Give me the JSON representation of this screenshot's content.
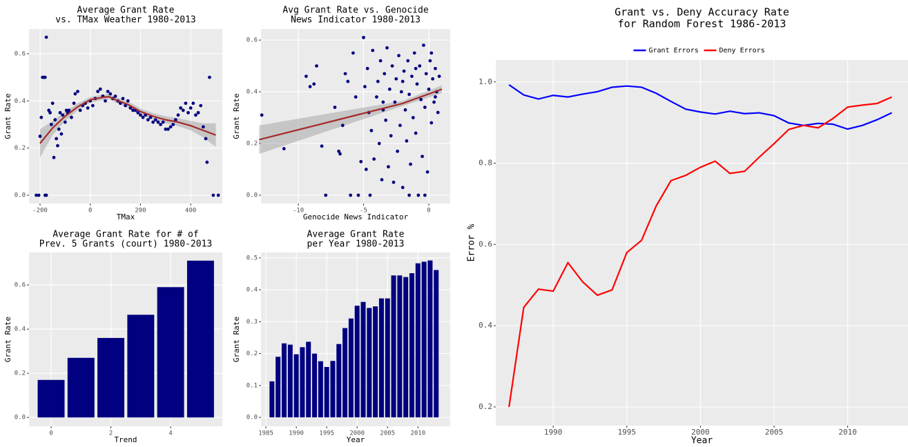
{
  "chart_data": [
    {
      "type": "scatter",
      "title": [
        "Average Grant Rate",
        "vs. TMax Weather 1980-2013"
      ],
      "xlabel": "TMax",
      "ylabel": "Grant Rate",
      "color": "#000080",
      "x": [
        -215,
        -205,
        -180,
        -175,
        -200,
        -195,
        -190,
        -185,
        -180,
        -175,
        -165,
        -160,
        -150,
        -155,
        -145,
        -140,
        -135,
        -130,
        -125,
        -120,
        -115,
        -110,
        -100,
        -95,
        -90,
        -85,
        -75,
        -65,
        -60,
        -50,
        -40,
        -30,
        -20,
        -10,
        0,
        10,
        20,
        30,
        40,
        50,
        60,
        70,
        80,
        90,
        100,
        110,
        120,
        130,
        140,
        150,
        160,
        170,
        180,
        190,
        200,
        210,
        220,
        230,
        240,
        250,
        260,
        270,
        280,
        290,
        300,
        310,
        320,
        330,
        340,
        350,
        360,
        370,
        380,
        390,
        400,
        410,
        420,
        430,
        440,
        450,
        460,
        465,
        475,
        490,
        510
      ],
      "values": [
        0.0,
        0.0,
        0.0,
        0.0,
        0.25,
        0.33,
        0.5,
        0.5,
        0.5,
        0.67,
        0.36,
        0.35,
        0.39,
        0.3,
        0.16,
        0.32,
        0.24,
        0.21,
        0.28,
        0.35,
        0.26,
        0.34,
        0.31,
        0.36,
        0.35,
        0.36,
        0.33,
        0.39,
        0.43,
        0.44,
        0.36,
        0.38,
        0.39,
        0.37,
        0.4,
        0.38,
        0.41,
        0.44,
        0.45,
        0.42,
        0.4,
        0.44,
        0.43,
        0.41,
        0.42,
        0.4,
        0.39,
        0.41,
        0.38,
        0.4,
        0.37,
        0.36,
        0.36,
        0.35,
        0.34,
        0.33,
        0.34,
        0.32,
        0.33,
        0.31,
        0.32,
        0.31,
        0.3,
        0.31,
        0.28,
        0.28,
        0.29,
        0.3,
        0.32,
        0.34,
        0.37,
        0.36,
        0.39,
        0.35,
        0.37,
        0.39,
        0.34,
        0.35,
        0.38,
        0.29,
        0.24,
        0.14,
        0.5,
        0.0,
        0.0
      ],
      "smooth": {
        "color": "#a52a2a",
        "x": [
          -200,
          -150,
          -100,
          -50,
          0,
          50,
          75,
          100,
          150,
          200,
          250,
          300,
          350,
          400,
          450,
          500
        ],
        "values": [
          0.22,
          0.285,
          0.335,
          0.375,
          0.405,
          0.415,
          0.418,
          0.405,
          0.385,
          0.355,
          0.335,
          0.32,
          0.31,
          0.295,
          0.275,
          0.255
        ],
        "lower": [
          0.16,
          0.255,
          0.315,
          0.36,
          0.393,
          0.403,
          0.406,
          0.393,
          0.372,
          0.342,
          0.322,
          0.305,
          0.293,
          0.275,
          0.245,
          0.205
        ],
        "upper": [
          0.28,
          0.315,
          0.355,
          0.39,
          0.417,
          0.427,
          0.43,
          0.417,
          0.398,
          0.368,
          0.348,
          0.335,
          0.327,
          0.315,
          0.305,
          0.305
        ]
      },
      "xlim": [
        -244,
        526
      ],
      "ylim": [
        -0.035,
        0.705
      ],
      "xticks": [
        -200,
        0,
        200,
        400
      ],
      "yticks": [
        {
          "value": 0,
          "label": "0.0"
        },
        0.2,
        0.4,
        0.6
      ],
      "grid": true
    },
    {
      "type": "scatter",
      "title": [
        "Avg Grant Rate vs. Genocide",
        "News Indicator 1980-2013"
      ],
      "xlabel": "Genocide News Indicator",
      "ylabel": "Grant Rate",
      "color": "#000080",
      "x": [
        -12.8,
        -11.1,
        -9.4,
        -9.1,
        -8.8,
        -8.6,
        -8.2,
        -7.9,
        -7.2,
        -6.9,
        -6.8,
        -6.6,
        -6.4,
        -6.2,
        -6.0,
        -5.8,
        -5.6,
        -5.4,
        -5.2,
        -5.0,
        -4.9,
        -4.8,
        -4.7,
        -4.6,
        -4.5,
        -4.4,
        -4.3,
        -4.2,
        -4.0,
        -3.9,
        -3.8,
        -3.7,
        -3.6,
        -3.5,
        -3.4,
        -3.3,
        -3.2,
        -3.1,
        -3.0,
        -2.9,
        -2.8,
        -2.7,
        -2.6,
        -2.5,
        -2.4,
        -2.3,
        -2.2,
        -2.1,
        -2.0,
        -1.9,
        -1.8,
        -1.7,
        -1.6,
        -1.5,
        -1.4,
        -1.3,
        -1.2,
        -1.1,
        -1.0,
        -0.9,
        -0.8,
        -0.7,
        -0.6,
        -0.5,
        -0.4,
        -0.3,
        -0.2,
        -0.1,
        0.0,
        0.1,
        0.2,
        0.3,
        0.4,
        0.5,
        0.6,
        0.7,
        0.8,
        -0.3,
        -1.5,
        -3.5,
        -2.0,
        -1.0,
        0.2,
        0.5
      ],
      "values": [
        0.31,
        0.18,
        0.46,
        0.42,
        0.43,
        0.5,
        0.19,
        0.0,
        0.34,
        0.17,
        0.16,
        0.27,
        0.47,
        0.44,
        0.0,
        0.55,
        0.38,
        0.0,
        0.13,
        0.61,
        0.42,
        0.1,
        0.49,
        0.32,
        0.0,
        0.25,
        0.56,
        0.14,
        0.38,
        0.44,
        0.2,
        0.52,
        0.06,
        0.33,
        0.47,
        0.29,
        0.57,
        0.11,
        0.41,
        0.23,
        0.5,
        0.05,
        0.36,
        0.45,
        0.17,
        0.54,
        0.27,
        0.4,
        0.03,
        0.48,
        0.33,
        0.21,
        0.52,
        0.39,
        0.12,
        0.46,
        0.3,
        0.55,
        0.24,
        0.43,
        0.0,
        0.5,
        0.37,
        0.15,
        0.58,
        0.34,
        0.47,
        0.09,
        0.41,
        0.52,
        0.28,
        0.45,
        0.36,
        0.49,
        0.4,
        0.32,
        0.46,
        0.0,
        0.0,
        0.36,
        0.44,
        0.49,
        0.55,
        0.38
      ],
      "smooth": {
        "color": "#a52a2a",
        "x": [
          -13,
          -2,
          1
        ],
        "values": [
          0.215,
          0.355,
          0.41
        ],
        "lower": [
          0.16,
          0.345,
          0.395
        ],
        "upper": [
          0.27,
          0.365,
          0.425
        ]
      },
      "xlim": [
        -12.86,
        1.64
      ],
      "ylim": [
        -0.032,
        0.643
      ],
      "xticks": [
        -10,
        -5,
        0
      ],
      "yticks": [
        {
          "value": 0,
          "label": "0.0"
        },
        0.2,
        0.4,
        0.6
      ],
      "grid": true
    },
    {
      "type": "bar",
      "title": [
        "Average Grant Rate for # of",
        "Prev. 5 Grants (court) 1980-2013"
      ],
      "xlabel": "Trend",
      "ylabel": "Grant Rate",
      "color": "#000080",
      "barwidth": 0.9,
      "x": [
        0,
        1,
        2,
        3,
        4,
        5
      ],
      "values": [
        0.17,
        0.27,
        0.36,
        0.465,
        0.59,
        0.71
      ],
      "xlim": [
        -0.74,
        5.73
      ],
      "ylim": [
        -0.04,
        0.747
      ],
      "xticks": [
        0,
        2,
        4
      ],
      "yticks": [
        {
          "value": 0,
          "label": "0.0"
        },
        0.2,
        0.4,
        0.6
      ],
      "grid": true
    },
    {
      "type": "bar",
      "title": [
        "Average Grant Rate",
        "per Year 1980-2013"
      ],
      "xlabel": "Year",
      "ylabel": "Grant Rate",
      "color": "#000080",
      "barwidth": 0.8,
      "x": [
        1986,
        1987,
        1988,
        1989,
        1990,
        1991,
        1992,
        1993,
        1994,
        1995,
        1996,
        1997,
        1998,
        1999,
        2000,
        2001,
        2002,
        2003,
        2004,
        2005,
        2006,
        2007,
        2008,
        2009,
        2010,
        2011,
        2012,
        2013
      ],
      "values": [
        0.113,
        0.19,
        0.232,
        0.228,
        0.198,
        0.22,
        0.237,
        0.2,
        0.176,
        0.158,
        0.177,
        0.23,
        0.28,
        0.31,
        0.35,
        0.362,
        0.343,
        0.348,
        0.373,
        0.373,
        0.445,
        0.445,
        0.44,
        0.452,
        0.483,
        0.488,
        0.492,
        0.462
      ],
      "xlim": [
        1984.2,
        2015.3
      ],
      "ylim": [
        -0.028,
        0.517
      ],
      "xticks": [
        1985,
        1990,
        1995,
        2000,
        2005,
        2010
      ],
      "yticks": [
        {
          "value": 0,
          "label": "0.0"
        },
        0.1,
        0.2,
        0.3,
        0.4,
        0.5
      ],
      "grid": true
    },
    {
      "type": "line",
      "title": [
        "Grant vs. Deny Accuracy Rate",
        "for Random Forest 1986-2013"
      ],
      "xlabel": "Year",
      "ylabel": "Error %",
      "legend": "top",
      "x": [
        1987,
        1988,
        1989,
        1990,
        1991,
        1992,
        1993,
        1994,
        1995,
        1996,
        1997,
        1998,
        1999,
        2000,
        2001,
        2002,
        2003,
        2004,
        2005,
        2006,
        2007,
        2008,
        2009,
        2010,
        2011,
        2012,
        2013
      ],
      "series": [
        {
          "name": "Grant Errors",
          "color": "#0000ff",
          "values": [
            0.993,
            0.968,
            0.958,
            0.967,
            0.963,
            0.97,
            0.976,
            0.987,
            0.99,
            0.987,
            0.972,
            0.952,
            0.933,
            0.926,
            0.921,
            0.928,
            0.922,
            0.924,
            0.917,
            0.899,
            0.893,
            0.898,
            0.896,
            0.884,
            0.893,
            0.907,
            0.924
          ]
        },
        {
          "name": "Deny Errors",
          "color": "#ff0000",
          "values": [
            0.2,
            0.445,
            0.49,
            0.485,
            0.555,
            0.508,
            0.475,
            0.488,
            0.58,
            0.61,
            0.695,
            0.757,
            0.77,
            0.79,
            0.805,
            0.775,
            0.78,
            0.815,
            0.848,
            0.883,
            0.893,
            0.887,
            0.91,
            0.938,
            0.943,
            0.947,
            0.963
          ]
        }
      ],
      "xlim": [
        1986.1,
        2014.1
      ],
      "ylim": [
        0.154,
        1.054
      ],
      "xticks": [
        1990,
        1995,
        2000,
        2005,
        2010
      ],
      "yticks": [
        0.2,
        0.4,
        0.6,
        0.8,
        {
          "value": 1,
          "label": "1.0"
        }
      ],
      "grid": true
    }
  ]
}
